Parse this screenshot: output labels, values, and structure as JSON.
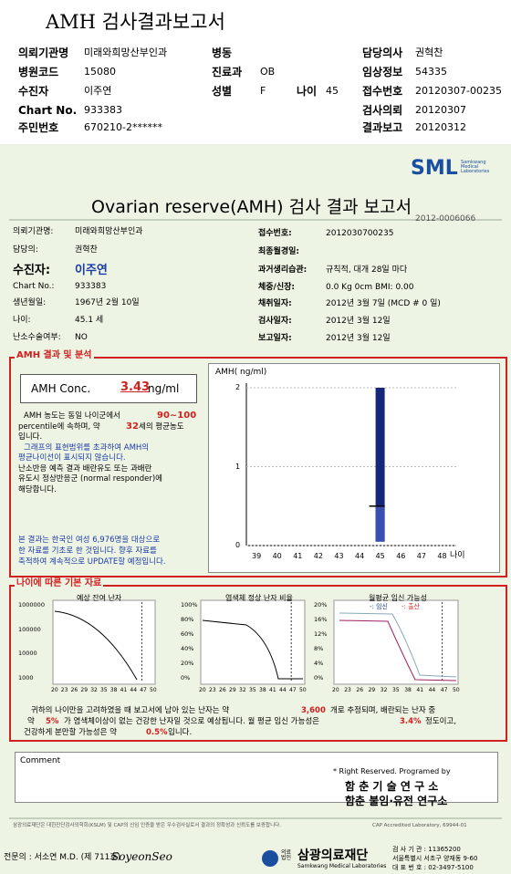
{
  "header": {
    "title": "AMH 검사결과보고서"
  },
  "report_info": {
    "institution": {
      "label": "의뢰기관명",
      "value": "미래와희망산부인과"
    },
    "ward": {
      "label": "병동"
    },
    "doctor": {
      "label": "담당의사",
      "value": "권혁찬"
    },
    "hospital_code": {
      "label": "병원코드",
      "value": "15080"
    },
    "department": {
      "label": "진료과",
      "value": "OB"
    },
    "clinical_info": {
      "label": "임상정보",
      "value": "54335"
    },
    "patient": {
      "label": "수진자",
      "value": "이주연"
    },
    "sex": {
      "label": "성별",
      "value": "F"
    },
    "age": {
      "label": "나이",
      "value": "45"
    },
    "receipt_no": {
      "label": "접수번호",
      "value": "20120307-00235"
    },
    "chart_no": {
      "label": "Chart No.",
      "value": "933383"
    },
    "request_date": {
      "label": "검사의뢰",
      "value": "20120307"
    },
    "resident_no": {
      "label": "주민번호",
      "value": "670210-2******"
    },
    "report_date": {
      "label": "결과보고",
      "value": "20120312"
    }
  },
  "report": {
    "logo": {
      "name": "SML",
      "subtitle": "Samkwang Medical Laboratories"
    },
    "title": "Ovarian reserve(AMH) 검사 결과 보고서",
    "doc_no": "2012-0006066",
    "left_fields": [
      {
        "label": "의뢰기관명:",
        "value": "미래와희망산부인과"
      },
      {
        "label": "담당의:",
        "value": "권혁찬"
      },
      {
        "label": "수진자:",
        "value": "이주연"
      },
      {
        "label": "Chart No.:",
        "value": "933383"
      },
      {
        "label": "생년월일:",
        "value": "1967년 2월 10일"
      },
      {
        "label": "나이:",
        "value": "45.1 세"
      },
      {
        "label": "난소수술여부:",
        "value": "NO"
      }
    ],
    "right_fields": [
      {
        "label": "접수번호:",
        "value": "2012030700235"
      },
      {
        "label": "최종월경일:"
      },
      {
        "label": "과거생리습관:",
        "value": "규칙적, 대개  28일 마다"
      },
      {
        "label": "체중/신장:",
        "value": "0.0 Kg      0cm    BMI:   0.00"
      },
      {
        "label": "채취일자:",
        "value": "2012년 3월 7일    (MCD # 0 일)"
      },
      {
        "label": "검사일자:",
        "value": "2012년 3월 12일"
      },
      {
        "label": "보고일자:",
        "value": "2012년 3월 12일"
      }
    ],
    "amh_section": {
      "title": "AMH 결과 및 분석",
      "conc_label": "AMH Conc.",
      "conc_value": "3.43",
      "conc_unit": "ng/ml",
      "analysis": [
        "AMH 농도는 동일 나이군에서",
        "90~100",
        "percentile에 속하며, 약",
        "32",
        "세의 평균농도",
        "입니다."
      ],
      "note": [
        "그래프의 표현범위를 초과하여 AMH의",
        "평균나이선이 표시되지 않습니다."
      ],
      "response": [
        "난소반응 예측 결과 배란유도 또는 과배란",
        "유도시 정상반응군 (normal responder)에",
        "해당합니다."
      ],
      "source": [
        "본 결과는 한국인 여성 6,976명을 대상으로",
        "한 자료를 기초로 한 것입니다. 향후 자료를",
        "축적하여 계속적으로 UPDATE할 예정입니다."
      ],
      "chart": {
        "y_label": "AMH( ng/ml)",
        "x_label": "나이",
        "yticks": [
          0,
          1,
          2
        ],
        "xticks": [
          39,
          40,
          41,
          42,
          43,
          44,
          45,
          46,
          47,
          48
        ]
      }
    },
    "age_section": {
      "title": "나이에 따른 기본 자료",
      "charts": [
        {
          "title": "예상 잔여 난자",
          "yticks": [
            1000000,
            100000,
            10000,
            1000
          ]
        },
        {
          "title": "염색체 정상 난자 비율",
          "yticks": [
            "100%",
            "80%",
            "60%",
            "40%",
            "20%",
            "0%"
          ]
        },
        {
          "title": "월평균 임신 가능성",
          "legend": [
            "-: 임신",
            "-: 출산"
          ],
          "yticks": [
            "20%",
            "16%",
            "12%",
            "8%",
            "4%",
            "0%"
          ]
        }
      ],
      "xticks": [
        20,
        23,
        26,
        29,
        32,
        35,
        38,
        41,
        44,
        47,
        50
      ],
      "summary": [
        "귀하의 나이만을 고려하였을 때 보고서에 남아 있는 난자는 약",
        "3,600",
        "개로 추정되며, 배란되는 난자 중",
        "약",
        "5%",
        "가 염색체이상이 없는 건강한 난자일 것으로 예상됩니다. 월 평균 임신 가능성은",
        "3.4%",
        "정도이고,",
        "건강하게 분만할 가능성은 약",
        "0.5%",
        "입니다."
      ]
    },
    "comment": {
      "label": "Comment"
    },
    "credits": [
      "* Right Reserved. Programed by",
      "함 춘  기 술  연 구 소",
      "함춘 불임·유전 연구소"
    ],
    "footer": {
      "certification": "삼광의료재단은 대한진단검사의학회(KSLM) 및 CAP의 신임 인증을 받은 우수검사실로서 결과의 정확성과 신뢰도를 보증합니다.",
      "cap": "CAP Accredited Laboratory, 69944-01",
      "specialist": "전문의 : 서소연 M.D. (제 711호)",
      "signature": "SoyeonSeo",
      "org_prefix": "의료법인",
      "org": "삼광의료재단",
      "org_en": "Samkwang Medical Laboratories",
      "lab_code": "검 사 기 관 : 11365200",
      "address": "서울특별시 서초구 양재동 9-60",
      "phone": "대 표 번 호 : 02-3497-5100"
    }
  }
}
